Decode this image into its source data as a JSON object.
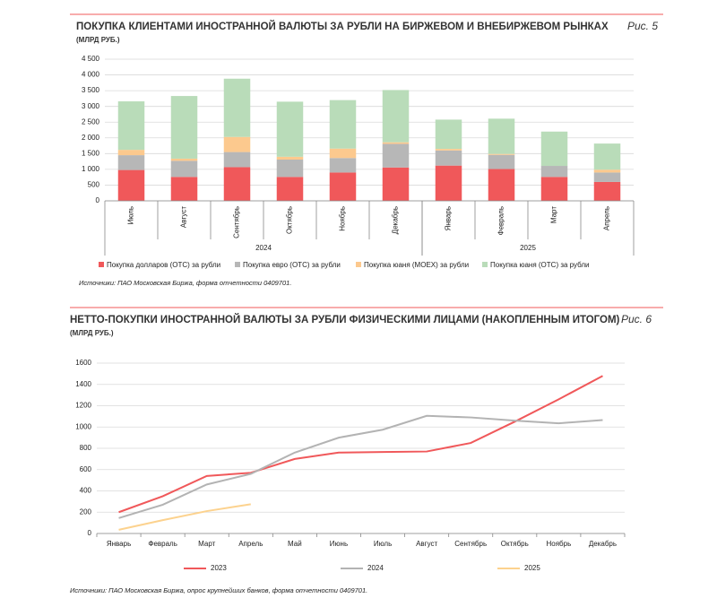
{
  "chart_data": [
    {
      "type": "bar",
      "stacked": true,
      "title": "ПОКУПКА КЛИЕНТАМИ ИНОСТРАННОЙ ВАЛЮТЫ ЗА РУБЛИ НА БИРЖЕВОМ И ВНЕБИРЖЕВОМ РЫНКАХ",
      "figure_label": "Рис. 5",
      "subtitle": "(МЛРД РУБ.)",
      "source": "Источники: ПАО Московская Биржа, форма отчетности 0409701.",
      "groups": [
        {
          "label": "2024",
          "categories": [
            "Июль",
            "Август",
            "Сентябрь",
            "Октябрь",
            "Ноябрь",
            "Декабрь"
          ]
        },
        {
          "label": "2025",
          "categories": [
            "Январь",
            "Февраль",
            "Март",
            "Апрель"
          ]
        }
      ],
      "series": [
        {
          "name": "Покупка долларов (OTC) за рубли",
          "color": "#f0585a",
          "values": [
            980,
            760,
            1070,
            760,
            900,
            1060,
            1120,
            1010,
            760,
            600
          ]
        },
        {
          "name": "Покупка евро (OTC) за рубли",
          "color": "#b7b7b7",
          "values": [
            470,
            510,
            480,
            550,
            460,
            750,
            480,
            450,
            350,
            300
          ]
        },
        {
          "name": "Покупка юаня (MOEX) за рубли",
          "color": "#fcc98e",
          "values": [
            170,
            70,
            480,
            90,
            300,
            50,
            50,
            30,
            0,
            90
          ]
        },
        {
          "name": "Покупка юаня (OTC) за рубли",
          "color": "#b9dcb9",
          "values": [
            1540,
            1990,
            1850,
            1750,
            1540,
            1660,
            930,
            1120,
            1090,
            830
          ]
        }
      ],
      "ylim": [
        0,
        4500
      ],
      "yticks": [
        0,
        500,
        {
          "value": 1000,
          "label": "1 000"
        },
        {
          "value": 1500,
          "label": "1 500"
        },
        {
          "value": 2000,
          "label": "2 000"
        },
        {
          "value": 2500,
          "label": "2 500"
        },
        {
          "value": 3000,
          "label": "3 000"
        },
        {
          "value": 3500,
          "label": "3 500"
        },
        {
          "value": 4000,
          "label": "4 000"
        },
        {
          "value": 4500,
          "label": "4 500"
        }
      ],
      "grid": true
    },
    {
      "type": "line",
      "title": "НЕТТО-ПОКУПКИ ИНОСТРАННОЙ ВАЛЮТЫ ЗА РУБЛИ ФИЗИЧЕСКИМИ ЛИЦАМИ (НАКОПЛЕННЫМ ИТОГОМ)",
      "figure_label": "Рис. 6",
      "subtitle": "(МЛРД РУБ.)",
      "source": "Источники: ПАО Московская Биржа, опрос крупнейших банков, форма отчетности 0409701.",
      "categories": [
        "Январь",
        "Февраль",
        "Март",
        "Апрель",
        "Май",
        "Июнь",
        "Июль",
        "Август",
        "Сентябрь",
        "Октябрь",
        "Ноябрь",
        "Декабрь"
      ],
      "series": [
        {
          "name": "2023",
          "color": "#f0585a",
          "values": [
            200,
            350,
            540,
            570,
            700,
            760,
            765,
            770,
            850,
            1050,
            1260,
            1480
          ]
        },
        {
          "name": "2024",
          "color": "#b3b3b3",
          "values": [
            145,
            270,
            460,
            560,
            760,
            900,
            975,
            1105,
            1090,
            1060,
            1035,
            1065
          ]
        },
        {
          "name": "2025",
          "color": "#fcd28e",
          "values": [
            35,
            125,
            210,
            275,
            null,
            null,
            null,
            null,
            null,
            null,
            null,
            null
          ]
        }
      ],
      "ylim": [
        0,
        1600
      ],
      "yticks": [
        0,
        200,
        400,
        600,
        800,
        1000,
        1200,
        1400,
        1600
      ],
      "grid": true
    }
  ]
}
